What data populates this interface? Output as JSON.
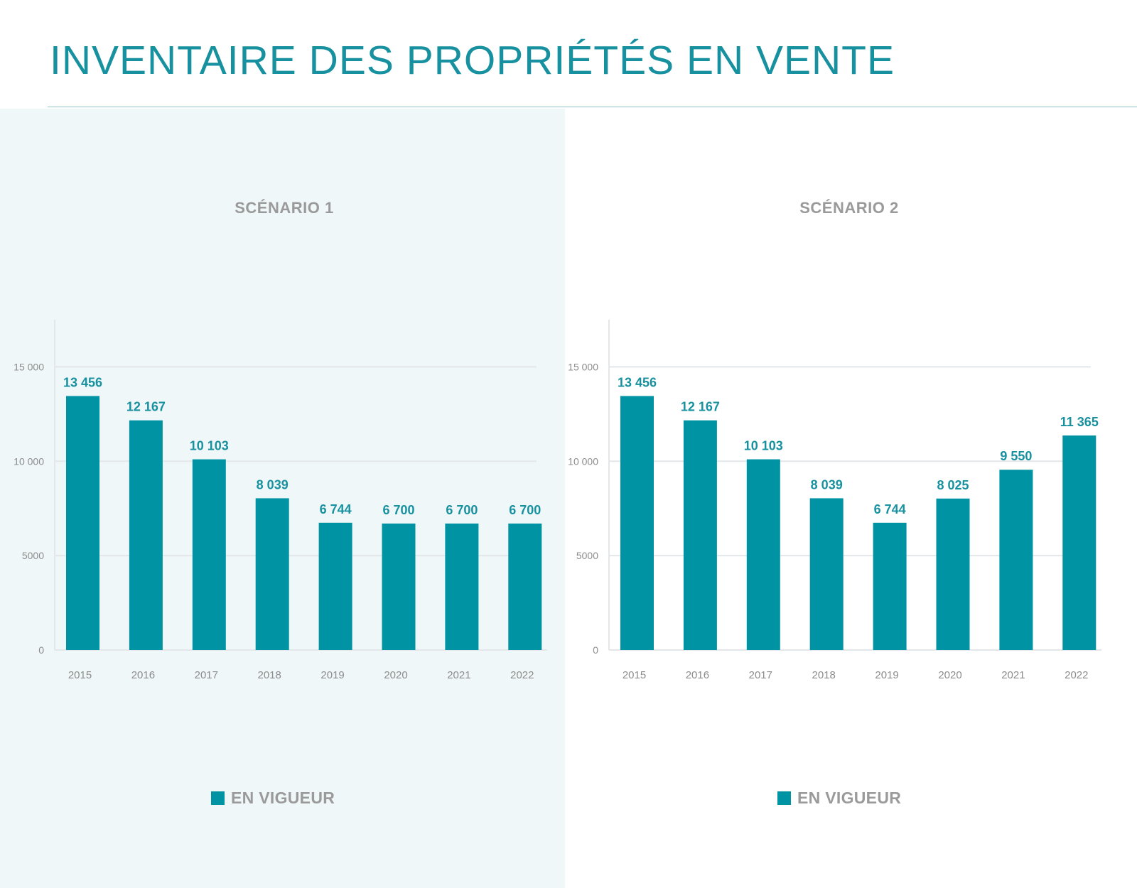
{
  "page": {
    "title": "INVENTAIRE DES PROPRIÉTÉS EN VENTE"
  },
  "colors": {
    "bar": "#0093a3",
    "accent_text": "#17919f",
    "panel_1_background": "#eff7f9",
    "grid": "#e3e7e9",
    "muted_text": "#9a9a9a"
  },
  "chart_data": [
    {
      "type": "bar",
      "title": "SCÉNARIO 1",
      "categories": [
        "2015",
        "2016",
        "2017",
        "2018",
        "2019",
        "2020",
        "2021",
        "2022"
      ],
      "series": [
        {
          "name": "EN VIGUEUR",
          "values": [
            13456,
            12167,
            10103,
            8039,
            6744,
            6700,
            6700,
            6700
          ],
          "labels": [
            "13 456",
            "12 167",
            "10 103",
            "8 039",
            "6 744",
            "6 700",
            "6 700",
            "6 700"
          ]
        }
      ],
      "y_ticks": [
        0,
        5000,
        10000,
        15000
      ],
      "y_tick_labels": [
        "0",
        "5000",
        "10 000",
        "15 000"
      ],
      "ylim": [
        0,
        17500
      ],
      "grid": true,
      "legend_position": "bottom-center"
    },
    {
      "type": "bar",
      "title": "SCÉNARIO 2",
      "categories": [
        "2015",
        "2016",
        "2017",
        "2018",
        "2019",
        "2020",
        "2021",
        "2022"
      ],
      "series": [
        {
          "name": "EN VIGUEUR",
          "values": [
            13456,
            12167,
            10103,
            8039,
            6744,
            8025,
            9550,
            11365
          ],
          "labels": [
            "13 456",
            "12 167",
            "10 103",
            "8 039",
            "6 744",
            "8 025",
            "9 550",
            "11 365"
          ]
        }
      ],
      "y_ticks": [
        0,
        5000,
        10000,
        15000
      ],
      "y_tick_labels": [
        "0",
        "5000",
        "10 000",
        "15 000"
      ],
      "ylim": [
        0,
        17500
      ],
      "grid": true,
      "legend_position": "bottom-center"
    }
  ]
}
